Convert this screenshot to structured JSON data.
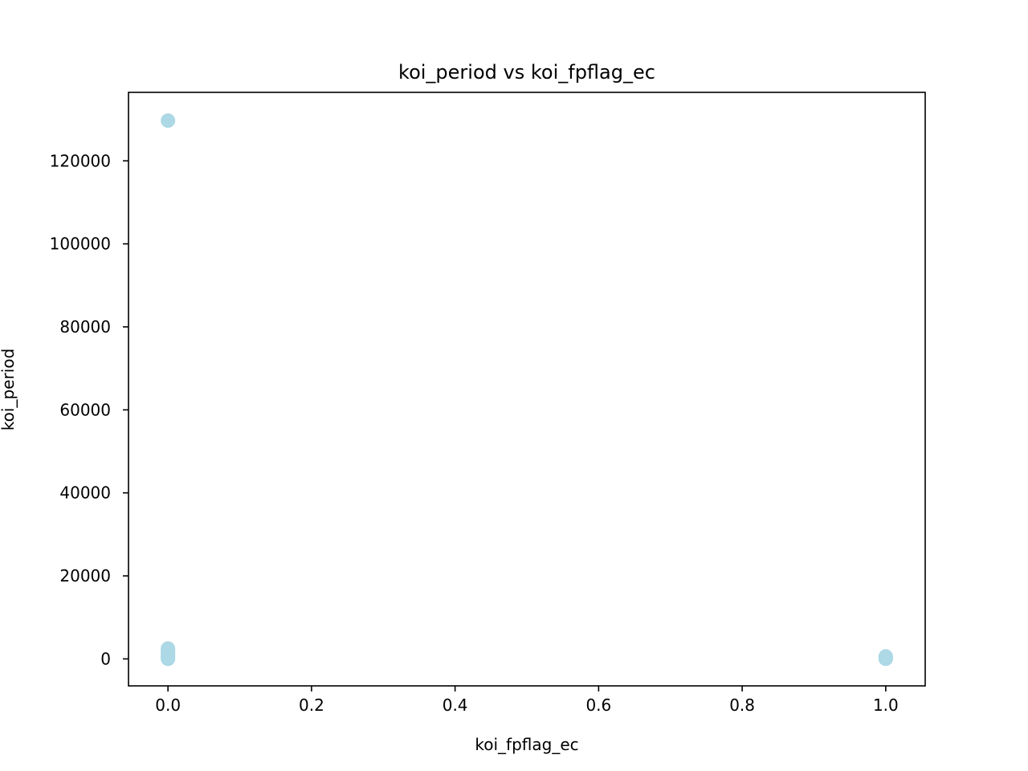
{
  "chart_data": {
    "type": "scatter",
    "title": "koi_period vs koi_fpflag_ec",
    "xlabel": "koi_fpflag_ec",
    "ylabel": "koi_period",
    "xlim": [
      -0.055,
      1.055
    ],
    "ylim": [
      -6500,
      136500
    ],
    "xticks": [
      0.0,
      0.2,
      0.4,
      0.6,
      0.8,
      1.0
    ],
    "xtick_labels": [
      "0.0",
      "0.2",
      "0.4",
      "0.6",
      "0.8",
      "1.0"
    ],
    "yticks": [
      0,
      20000,
      40000,
      60000,
      80000,
      100000,
      120000
    ],
    "ytick_labels": [
      "0",
      "20000",
      "40000",
      "60000",
      "80000",
      "100000",
      "120000"
    ],
    "grid": false,
    "point_color": "#add8e6",
    "points": [
      {
        "x": 0,
        "y": 129700
      },
      {
        "x": 0,
        "y": 2500
      },
      {
        "x": 0,
        "y": 2000
      },
      {
        "x": 0,
        "y": 1500
      },
      {
        "x": 0,
        "y": 1100
      },
      {
        "x": 0,
        "y": 800
      },
      {
        "x": 0,
        "y": 500
      },
      {
        "x": 0,
        "y": 300
      },
      {
        "x": 0,
        "y": 100
      },
      {
        "x": 0,
        "y": 10
      },
      {
        "x": 1,
        "y": 600
      },
      {
        "x": 1,
        "y": 350
      },
      {
        "x": 1,
        "y": 150
      },
      {
        "x": 1,
        "y": 20
      }
    ]
  }
}
